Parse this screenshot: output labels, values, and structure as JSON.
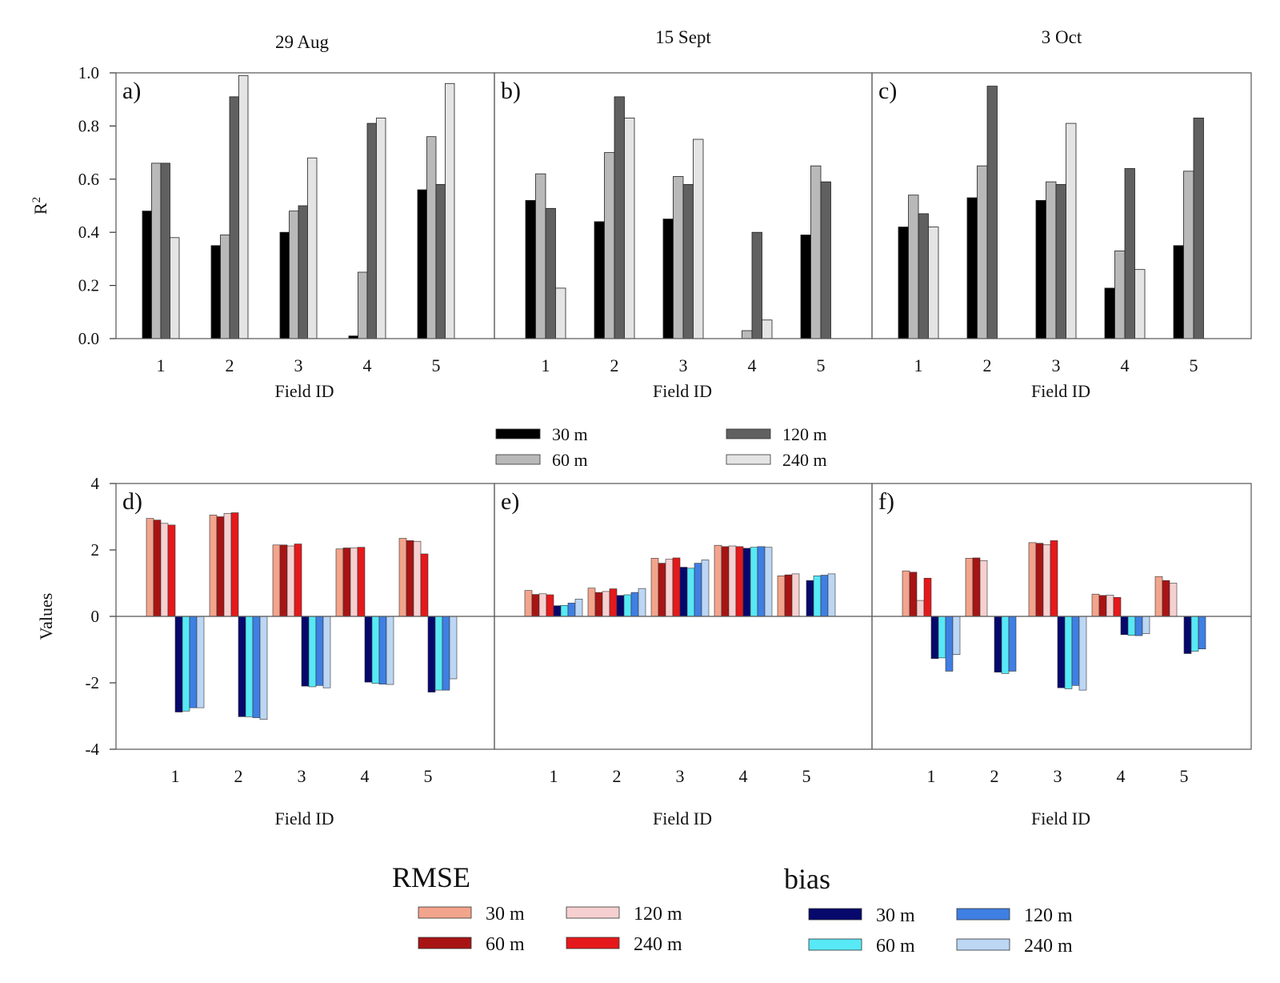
{
  "chart_data": {
    "type": "bar",
    "column_titles": [
      "29 Aug",
      "15 Sept",
      "3 Oct"
    ],
    "categories": [
      "1",
      "2",
      "3",
      "4",
      "5"
    ],
    "xlabel": "Field ID",
    "top_row": {
      "ylabel": "R2",
      "ylabel_main": "R",
      "ylabel_sup": "2",
      "ylim": [
        0,
        1
      ],
      "yticks": [
        "0.0",
        "0.2",
        "0.4",
        "0.6",
        "0.8",
        "1.0"
      ],
      "legend": [
        {
          "name": "30 m",
          "color": "#000000"
        },
        {
          "name": "60 m",
          "color": "#b9b9b9"
        },
        {
          "name": "120 m",
          "color": "#606060"
        },
        {
          "name": "240 m",
          "color": "#e4e4e4"
        }
      ],
      "panels": [
        {
          "label": "a)",
          "series": [
            {
              "name": "30 m",
              "values": [
                0.48,
                0.35,
                0.4,
                0.01,
                0.56
              ]
            },
            {
              "name": "60 m",
              "values": [
                0.66,
                0.39,
                0.48,
                0.25,
                0.76
              ]
            },
            {
              "name": "120 m",
              "values": [
                0.66,
                0.91,
                0.5,
                0.81,
                0.58
              ]
            },
            {
              "name": "240 m",
              "values": [
                0.38,
                0.99,
                0.68,
                0.83,
                0.96
              ]
            }
          ]
        },
        {
          "label": "b)",
          "series": [
            {
              "name": "30 m",
              "values": [
                0.52,
                0.44,
                0.45,
                0.0,
                0.39
              ]
            },
            {
              "name": "60 m",
              "values": [
                0.62,
                0.7,
                0.61,
                0.03,
                0.65
              ]
            },
            {
              "name": "120 m",
              "values": [
                0.49,
                0.91,
                0.58,
                0.4,
                0.59
              ]
            },
            {
              "name": "240 m",
              "values": [
                0.19,
                0.83,
                0.75,
                0.07,
                0.0
              ]
            }
          ]
        },
        {
          "label": "c)",
          "series": [
            {
              "name": "30 m",
              "values": [
                0.42,
                0.53,
                0.52,
                0.19,
                0.35
              ]
            },
            {
              "name": "60 m",
              "values": [
                0.54,
                0.65,
                0.59,
                0.33,
                0.63
              ]
            },
            {
              "name": "120 m",
              "values": [
                0.47,
                0.95,
                0.58,
                0.64,
                0.83
              ]
            },
            {
              "name": "240 m",
              "values": [
                0.42,
                0.0,
                0.81,
                0.26,
                0.0
              ]
            }
          ]
        }
      ]
    },
    "bottom_row": {
      "ylabel": "Values",
      "ylim": [
        -4,
        4
      ],
      "yticks": [
        "-4",
        "-2",
        "0",
        "2",
        "4"
      ],
      "legend_titles": [
        "RMSE",
        "bias"
      ],
      "rmse_legend": [
        {
          "name": "30 m",
          "color": "#f3a48c"
        },
        {
          "name": "60 m",
          "color": "#a81414"
        },
        {
          "name": "120 m",
          "color": "#f6d0d0"
        },
        {
          "name": "240 m",
          "color": "#e5191b"
        }
      ],
      "bias_legend": [
        {
          "name": "30 m",
          "color": "#07086c"
        },
        {
          "name": "60 m",
          "color": "#57e9f6"
        },
        {
          "name": "120 m",
          "color": "#3f7fe3"
        },
        {
          "name": "240 m",
          "color": "#bcd6f4"
        }
      ],
      "panels": [
        {
          "label": "d)",
          "rmse": [
            [
              2.95,
              2.9,
              2.8,
              2.75
            ],
            [
              3.05,
              3.0,
              3.1,
              3.12
            ],
            [
              2.15,
              2.15,
              2.12,
              2.18
            ],
            [
              2.03,
              2.06,
              2.06,
              2.08
            ],
            [
              2.35,
              2.28,
              2.26,
              1.88
            ]
          ],
          "bias": [
            [
              -2.88,
              -2.85,
              -2.75,
              -2.75
            ],
            [
              -3.02,
              -3.02,
              -3.05,
              -3.1
            ],
            [
              -2.1,
              -2.12,
              -2.08,
              -2.15
            ],
            [
              -1.98,
              -2.02,
              -2.04,
              -2.05
            ],
            [
              -2.28,
              -2.22,
              -2.22,
              -1.88
            ]
          ]
        },
        {
          "label": "e)",
          "rmse": [
            [
              0.78,
              0.66,
              0.68,
              0.65
            ],
            [
              0.85,
              0.72,
              0.75,
              0.83
            ],
            [
              1.75,
              1.6,
              1.72,
              1.76
            ],
            [
              2.14,
              2.1,
              2.12,
              2.1
            ],
            [
              1.22,
              1.25,
              1.28,
              0.0
            ]
          ],
          "bias": [
            [
              0.32,
              0.33,
              0.4,
              0.52
            ],
            [
              0.63,
              0.65,
              0.72,
              0.84
            ],
            [
              1.48,
              1.45,
              1.6,
              1.7
            ],
            [
              2.05,
              2.08,
              2.1,
              2.08
            ],
            [
              1.08,
              1.22,
              1.24,
              1.28
            ]
          ]
        },
        {
          "label": "f)",
          "rmse": [
            [
              1.37,
              1.33,
              0.48,
              1.15
            ],
            [
              1.75,
              1.76,
              1.68,
              0.0
            ],
            [
              2.22,
              2.2,
              2.16,
              2.28
            ],
            [
              0.67,
              0.63,
              0.64,
              0.57
            ],
            [
              1.2,
              1.08,
              1.0,
              0.0
            ]
          ],
          "bias": [
            [
              -1.27,
              -1.25,
              -1.65,
              -1.15
            ],
            [
              -1.68,
              -1.72,
              -1.65,
              0.0
            ],
            [
              -2.15,
              -2.18,
              -2.08,
              -2.22
            ],
            [
              -0.55,
              -0.57,
              -0.58,
              -0.52
            ],
            [
              -1.12,
              -1.05,
              -0.98,
              0.0
            ]
          ]
        }
      ]
    }
  }
}
